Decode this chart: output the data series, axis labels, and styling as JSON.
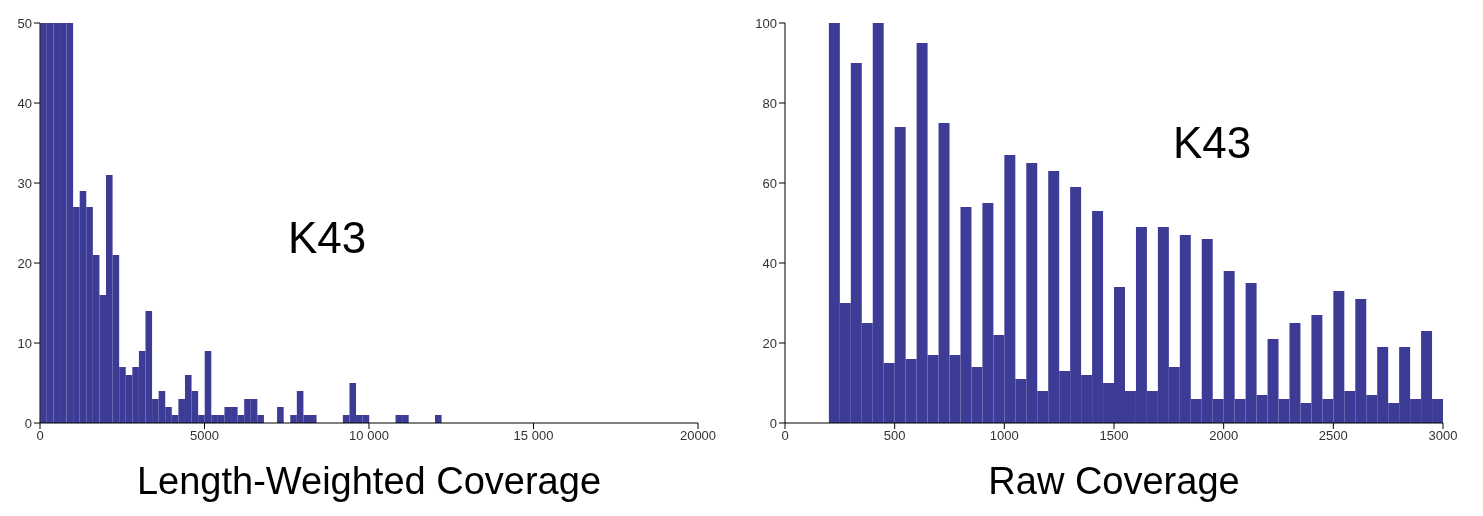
{
  "chart_data": [
    {
      "type": "histogram",
      "xlabel": "Length-Weighted Coverage",
      "annotations": [
        "K43"
      ],
      "color": "#3c3c96",
      "bins": [
        0,
        200,
        400,
        600,
        800,
        1000,
        1200,
        1400,
        1600,
        1800,
        2000,
        2200,
        2400,
        2600,
        2800,
        3000,
        3200,
        3400,
        3600,
        3800,
        4000,
        4200,
        4400,
        4600,
        4800,
        5000,
        5200,
        5400,
        5600,
        5800,
        6000,
        6200,
        6400,
        6600,
        6800,
        7000,
        7200,
        7400,
        7600,
        7800,
        8000,
        8200,
        8400,
        8600,
        8800,
        9000,
        9200,
        9400,
        9600,
        9800,
        10000,
        10200,
        10400,
        10600,
        10800,
        11000,
        11200,
        11400,
        11600,
        11800,
        12000,
        12200
      ],
      "values": [
        50,
        50,
        50,
        50,
        50,
        27,
        29,
        27,
        21,
        16,
        31,
        21,
        7,
        6,
        7,
        9,
        14,
        3,
        4,
        2,
        1,
        3,
        6,
        4,
        1,
        9,
        1,
        1,
        2,
        2,
        1,
        3,
        3,
        1,
        0,
        0,
        2,
        0,
        1,
        4,
        1,
        1,
        0,
        0,
        0,
        0,
        1,
        5,
        1,
        1,
        0,
        0,
        0,
        0,
        1,
        1,
        0,
        0,
        0,
        0,
        1
      ],
      "xlim": [
        0,
        20000
      ],
      "ylim": [
        0,
        50
      ],
      "xticks": [
        0,
        5000,
        {
          "value": 10000,
          "label": "10 000"
        },
        {
          "value": 15000,
          "label": "15 000"
        },
        20000
      ],
      "yticks": [
        0,
        10,
        20,
        30,
        40,
        50
      ]
    },
    {
      "type": "histogram",
      "xlabel": "Raw Coverage",
      "annotations": [
        "K43"
      ],
      "color": "#3c3c96",
      "bins": [
        200,
        250,
        300,
        350,
        400,
        450,
        500,
        550,
        600,
        650,
        700,
        750,
        800,
        850,
        900,
        950,
        1000,
        1050,
        1100,
        1150,
        1200,
        1250,
        1300,
        1350,
        1400,
        1450,
        1500,
        1550,
        1600,
        1650,
        1700,
        1750,
        1800,
        1850,
        1900,
        1950,
        2000,
        2050,
        2100,
        2150,
        2200,
        2250,
        2300,
        2350,
        2400,
        2450,
        2500,
        2550,
        2600,
        2650,
        2700,
        2750,
        2800,
        2850,
        2900,
        2950,
        3000
      ],
      "values": [
        100,
        30,
        90,
        25,
        100,
        15,
        74,
        16,
        95,
        17,
        75,
        17,
        54,
        14,
        55,
        22,
        67,
        11,
        65,
        8,
        63,
        13,
        59,
        12,
        53,
        10,
        34,
        8,
        49,
        8,
        49,
        14,
        47,
        6,
        46,
        6,
        38,
        6,
        35,
        7,
        21,
        6,
        25,
        5,
        27,
        6,
        33,
        8,
        31,
        7,
        19,
        5,
        19,
        6,
        23,
        6
      ],
      "xlim": [
        0,
        3000
      ],
      "ylim": [
        0,
        100
      ],
      "xticks": [
        0,
        500,
        1000,
        1500,
        2000,
        2500,
        3000
      ],
      "yticks": [
        0,
        20,
        40,
        60,
        80,
        100
      ]
    }
  ]
}
